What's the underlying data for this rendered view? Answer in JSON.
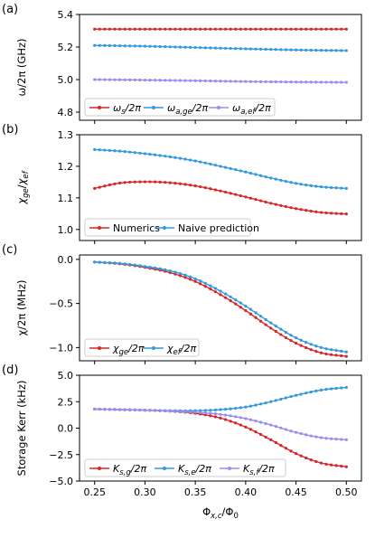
{
  "chart_data": [
    {
      "type": "line",
      "panel_label": "(a)",
      "ylabel": "ω/2π (GHz)",
      "xlim": [
        0.235,
        0.515
      ],
      "ylim": [
        4.75,
        5.4
      ],
      "yticks": [
        4.8,
        5.0,
        5.2,
        5.4
      ],
      "ytick_labels": [
        "4.8",
        "5.0",
        "5.2",
        "5.4"
      ],
      "legend_position": "bottom-left",
      "series": [
        {
          "name": "ωs/2π",
          "color": "#d62728",
          "x": [
            0.25,
            0.3,
            0.35,
            0.4,
            0.45,
            0.5
          ],
          "values": [
            5.31,
            5.31,
            5.31,
            5.31,
            5.31,
            5.31
          ]
        },
        {
          "name": "ωa,ge/2π",
          "color": "#3399dd",
          "x": [
            0.25,
            0.3,
            0.35,
            0.4,
            0.45,
            0.5
          ],
          "values": [
            5.21,
            5.205,
            5.197,
            5.189,
            5.182,
            5.178
          ]
        },
        {
          "name": "ωa,ef/2π",
          "color": "#9b8cf0",
          "x": [
            0.25,
            0.3,
            0.35,
            0.4,
            0.45,
            0.5
          ],
          "values": [
            5.0,
            4.997,
            4.993,
            4.988,
            4.985,
            4.983
          ]
        }
      ]
    },
    {
      "type": "line",
      "panel_label": "(b)",
      "ylabel": "χge/χef",
      "xlim": [
        0.235,
        0.515
      ],
      "ylim": [
        0.965,
        1.3
      ],
      "yticks": [
        1.0,
        1.1,
        1.2,
        1.3
      ],
      "ytick_labels": [
        "1.0",
        "1.1",
        "1.2",
        "1.3"
      ],
      "legend_position": "bottom-left",
      "series": [
        {
          "name": "Numerics",
          "color": "#d62728",
          "x": [
            0.25,
            0.275,
            0.3,
            0.325,
            0.35,
            0.375,
            0.4,
            0.425,
            0.45,
            0.475,
            0.5
          ],
          "values": [
            1.13,
            1.147,
            1.151,
            1.148,
            1.138,
            1.122,
            1.103,
            1.083,
            1.066,
            1.054,
            1.049
          ]
        },
        {
          "name": "Naive prediction",
          "color": "#3399dd",
          "x": [
            0.25,
            0.275,
            0.3,
            0.325,
            0.35,
            0.375,
            0.4,
            0.425,
            0.45,
            0.475,
            0.5
          ],
          "values": [
            1.253,
            1.248,
            1.24,
            1.23,
            1.217,
            1.2,
            1.182,
            1.163,
            1.146,
            1.135,
            1.13
          ]
        }
      ]
    },
    {
      "type": "line",
      "panel_label": "(c)",
      "ylabel": "χ/2π (MHz)",
      "xlim": [
        0.235,
        0.515
      ],
      "ylim": [
        -1.15,
        0.05
      ],
      "yticks": [
        -1.0,
        -0.5,
        0.0
      ],
      "ytick_labels": [
        "−1.0",
        "−0.5",
        "0.0"
      ],
      "legend_position": "bottom-left",
      "series": [
        {
          "name": "χge/2π",
          "color": "#d62728",
          "x": [
            0.25,
            0.275,
            0.3,
            0.325,
            0.35,
            0.375,
            0.4,
            0.425,
            0.45,
            0.475,
            0.5
          ],
          "values": [
            -0.03,
            -0.05,
            -0.09,
            -0.15,
            -0.25,
            -0.4,
            -0.58,
            -0.78,
            -0.95,
            -1.06,
            -1.1
          ]
        },
        {
          "name": "χef/2π",
          "color": "#3399dd",
          "x": [
            0.25,
            0.275,
            0.3,
            0.325,
            0.35,
            0.375,
            0.4,
            0.425,
            0.45,
            0.475,
            0.5
          ],
          "values": [
            -0.03,
            -0.045,
            -0.08,
            -0.13,
            -0.22,
            -0.36,
            -0.53,
            -0.72,
            -0.89,
            -1.0,
            -1.05
          ]
        }
      ]
    },
    {
      "type": "line",
      "panel_label": "(d)",
      "ylabel": "Storage Kerr (kHz)",
      "xlabel": "Φx,c/Φ0",
      "xlim": [
        0.235,
        0.515
      ],
      "ylim": [
        -5.0,
        5.0
      ],
      "yticks": [
        -5.0,
        -2.5,
        0.0,
        2.5,
        5.0
      ],
      "ytick_labels": [
        "−5.0",
        "−2.5",
        "0.0",
        "2.5",
        "5.0"
      ],
      "xticks": [
        0.25,
        0.3,
        0.35,
        0.4,
        0.45,
        0.5
      ],
      "xtick_labels": [
        "0.25",
        "0.30",
        "0.35",
        "0.40",
        "0.45",
        "0.50"
      ],
      "legend_position": "bottom-left",
      "series": [
        {
          "name": "Ks,g/2π",
          "color": "#d62728",
          "x": [
            0.25,
            0.275,
            0.3,
            0.325,
            0.35,
            0.375,
            0.4,
            0.425,
            0.45,
            0.475,
            0.5
          ],
          "values": [
            1.8,
            1.75,
            1.7,
            1.6,
            1.4,
            0.95,
            0.1,
            -1.1,
            -2.4,
            -3.3,
            -3.65
          ]
        },
        {
          "name": "Ks,e/2π",
          "color": "#3399dd",
          "x": [
            0.25,
            0.275,
            0.3,
            0.325,
            0.35,
            0.375,
            0.4,
            0.425,
            0.45,
            0.475,
            0.5
          ],
          "values": [
            1.8,
            1.75,
            1.7,
            1.65,
            1.65,
            1.75,
            2.0,
            2.5,
            3.1,
            3.6,
            3.85
          ]
        },
        {
          "name": "Ks,f/2π",
          "color": "#9b8cf0",
          "x": [
            0.25,
            0.275,
            0.3,
            0.325,
            0.35,
            0.375,
            0.4,
            0.425,
            0.45,
            0.475,
            0.5
          ],
          "values": [
            1.8,
            1.75,
            1.7,
            1.6,
            1.5,
            1.3,
            0.9,
            0.3,
            -0.4,
            -0.9,
            -1.1
          ]
        }
      ]
    }
  ]
}
